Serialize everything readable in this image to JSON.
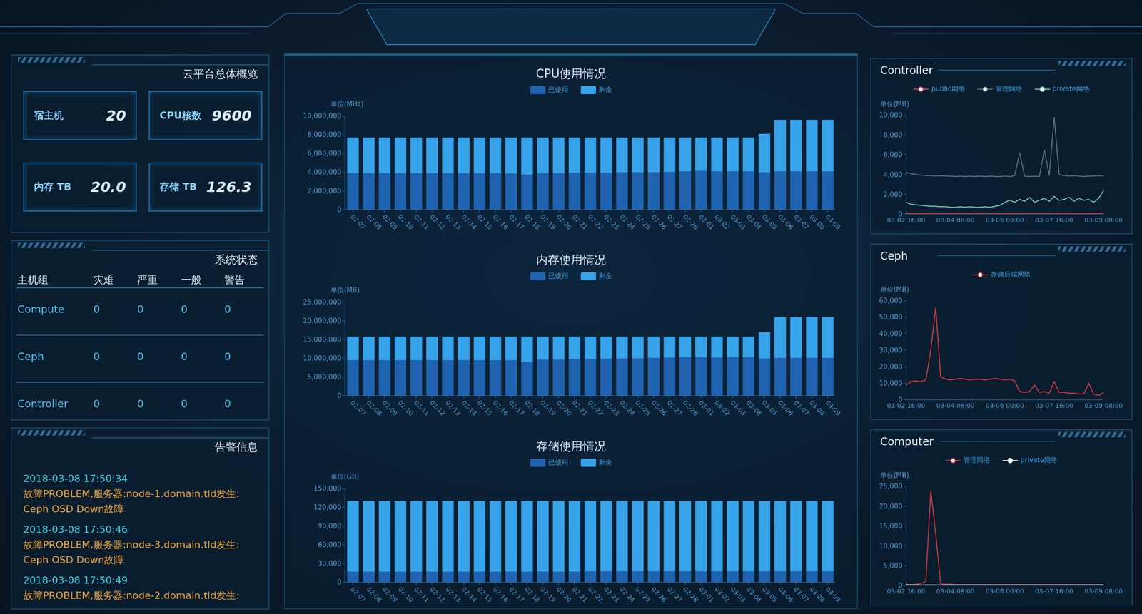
{
  "overview": {
    "title": "云平台总体概览",
    "items": [
      {
        "label": "宿主机",
        "value": "20"
      },
      {
        "label": "CPU核数",
        "value": "9600"
      },
      {
        "label": "内存 TB",
        "value": "20.0"
      },
      {
        "label": "存储 TB",
        "value": "126.3"
      }
    ]
  },
  "system_status": {
    "title": "系统状态",
    "table": {
      "columns": [
        "主机组",
        "灾难",
        "严重",
        "一般",
        "警告"
      ],
      "rows": [
        [
          "Compute",
          "0",
          "0",
          "0",
          "0"
        ],
        [
          "Ceph",
          "0",
          "0",
          "0",
          "0"
        ],
        [
          "Controller",
          "0",
          "0",
          "0",
          "0"
        ]
      ]
    }
  },
  "alerts": {
    "title": "告警信息",
    "items": [
      {
        "time": "2018-03-08 17:50:34",
        "lines": [
          "故障PROBLEM,服务器:node-1.domain.tld发生:",
          "Ceph OSD Down故障"
        ]
      },
      {
        "time": "2018-03-08 17:50:46",
        "lines": [
          "故障PROBLEM,服务器:node-3.domain.tld发生:",
          "Ceph OSD Down故障"
        ]
      },
      {
        "time": "2018-03-08 17:50:49",
        "lines": [
          "故障PROBLEM,服务器:node-2.domain.tld发生:"
        ]
      }
    ]
  },
  "chart_data": [
    {
      "type": "bar",
      "title": "CPU使用情况",
      "y_label": "单位(MHz)",
      "categories": [
        "02-07",
        "02-08",
        "02-09",
        "02-10",
        "02-11",
        "02-12",
        "02-13",
        "02-14",
        "02-15",
        "02-16",
        "02-17",
        "02-18",
        "02-19",
        "02-20",
        "02-21",
        "02-22",
        "02-23",
        "02-24",
        "02-25",
        "02-26",
        "02-27",
        "02-28",
        "03-01",
        "03-02",
        "03-03",
        "03-04",
        "03-05",
        "03-06",
        "03-07",
        "03-08",
        "03-09"
      ],
      "series": [
        {
          "name": "已使用",
          "color": "#1f63b0",
          "values": [
            3900000,
            3900000,
            3900000,
            3900000,
            3900000,
            3900000,
            3900000,
            3900000,
            3900000,
            3900000,
            3850000,
            3750000,
            3900000,
            3900000,
            3950000,
            3950000,
            3950000,
            4000000,
            4000000,
            4000000,
            4050000,
            4100000,
            4150000,
            4100000,
            4100000,
            4100000,
            4000000,
            4100000,
            4100000,
            4100000,
            4100000
          ]
        },
        {
          "name": "剩余",
          "color": "#36a3ea",
          "values": [
            3800000,
            3800000,
            3800000,
            3800000,
            3800000,
            3800000,
            3800000,
            3800000,
            3800000,
            3800000,
            3850000,
            3950000,
            3800000,
            3800000,
            3750000,
            3750000,
            3750000,
            3700000,
            3700000,
            3700000,
            3650000,
            3600000,
            3550000,
            3600000,
            3600000,
            3600000,
            4100000,
            5500000,
            5500000,
            5500000,
            5500000
          ]
        }
      ],
      "stacked": true,
      "ylim": [
        0,
        10000000
      ],
      "yticks": [
        0,
        {
          "value": 2000000,
          "label": "2,000,000"
        },
        {
          "value": 4000000,
          "label": "4,000,000"
        },
        {
          "value": 6000000,
          "label": "6,000,000"
        },
        {
          "value": 8000000,
          "label": "8,000,000"
        },
        {
          "value": 10000000,
          "label": "10,000,000"
        }
      ],
      "grid": false,
      "legend": "top"
    },
    {
      "type": "bar",
      "title": "内存使用情况",
      "y_label": "单位(MB)",
      "categories": [
        "02-07",
        "02-08",
        "02-09",
        "02-10",
        "02-11",
        "02-12",
        "02-13",
        "02-14",
        "02-15",
        "02-16",
        "02-17",
        "02-18",
        "02-19",
        "02-20",
        "02-21",
        "02-22",
        "02-23",
        "02-24",
        "02-25",
        "02-26",
        "02-27",
        "02-28",
        "03-01",
        "03-02",
        "03-03",
        "03-04",
        "03-05",
        "03-06",
        "03-07",
        "03-08",
        "03-09"
      ],
      "series": [
        {
          "name": "已使用",
          "color": "#1f63b0",
          "values": [
            9500000,
            9500000,
            9500000,
            9500000,
            9500000,
            9500000,
            9500000,
            9500000,
            9500000,
            9500000,
            9500000,
            9000000,
            9600000,
            9600000,
            9700000,
            9800000,
            9900000,
            10000000,
            10000000,
            10100000,
            10200000,
            10300000,
            10300000,
            10200000,
            10300000,
            10300000,
            10000000,
            10100000,
            10100000,
            10100000,
            10100000
          ]
        },
        {
          "name": "剩余",
          "color": "#36a3ea",
          "values": [
            6300000,
            6300000,
            6300000,
            6300000,
            6300000,
            6300000,
            6300000,
            6300000,
            6300000,
            6300000,
            6300000,
            6800000,
            6200000,
            6200000,
            6100000,
            6000000,
            5900000,
            5800000,
            5800000,
            5700000,
            5600000,
            5500000,
            5500000,
            5600000,
            5500000,
            5500000,
            7000000,
            10900000,
            10900000,
            10900000,
            10900000
          ]
        }
      ],
      "stacked": true,
      "ylim": [
        0,
        25000000
      ],
      "yticks": [
        0,
        {
          "value": 5000000,
          "label": "5,000,000"
        },
        {
          "value": 10000000,
          "label": "10,000,000"
        },
        {
          "value": 15000000,
          "label": "15,000,000"
        },
        {
          "value": 20000000,
          "label": "20,000,000"
        },
        {
          "value": 25000000,
          "label": "25,000,000"
        }
      ],
      "grid": false,
      "legend": "top"
    },
    {
      "type": "bar",
      "title": "存储使用情况",
      "y_label": "单位(GB)",
      "categories": [
        "02-07",
        "02-08",
        "02-09",
        "02-10",
        "02-11",
        "02-12",
        "02-13",
        "02-14",
        "02-15",
        "02-16",
        "02-17",
        "02-18",
        "02-19",
        "02-20",
        "02-21",
        "02-22",
        "02-23",
        "02-24",
        "02-25",
        "02-26",
        "02-27",
        "02-28",
        "03-01",
        "03-02",
        "03-03",
        "03-04",
        "03-05",
        "03-06",
        "03-07",
        "03-08",
        "03-09"
      ],
      "series": [
        {
          "name": "已使用",
          "color": "#1f63b0",
          "values": [
            17000,
            17000,
            17000,
            17000,
            17000,
            17000,
            17000,
            17000,
            17000,
            17000,
            17000,
            17000,
            17000,
            17000,
            17000,
            17500,
            17500,
            17500,
            17500,
            17500,
            17500,
            17500,
            17500,
            17500,
            17500,
            17500,
            17500,
            17500,
            17500,
            17500,
            17500
          ]
        },
        {
          "name": "剩余",
          "color": "#36a3ea",
          "values": [
            113000,
            113000,
            113000,
            113000,
            113000,
            113000,
            113000,
            113000,
            113000,
            113000,
            113000,
            113000,
            113000,
            113000,
            113000,
            112500,
            112500,
            112500,
            112500,
            112500,
            112500,
            112500,
            112500,
            112500,
            112500,
            112500,
            112500,
            112500,
            112500,
            112500,
            112500
          ]
        }
      ],
      "stacked": true,
      "ylim": [
        0,
        150000
      ],
      "yticks": [
        0,
        {
          "value": 30000,
          "label": "30,000"
        },
        {
          "value": 60000,
          "label": "60,000"
        },
        {
          "value": 90000,
          "label": "90,000"
        },
        {
          "value": 120000,
          "label": "120,000"
        },
        {
          "value": 150000,
          "label": "150,000"
        }
      ],
      "grid": false,
      "legend": "top"
    },
    {
      "type": "line",
      "title": "Controller",
      "y_label": "单位(MB)",
      "categories": [
        "03-02 16:00",
        null,
        null,
        null,
        null,
        null,
        null,
        null,
        null,
        null,
        "03-04 08:00",
        null,
        null,
        null,
        null,
        null,
        null,
        null,
        null,
        null,
        "03-06 00:00",
        null,
        null,
        null,
        null,
        null,
        null,
        null,
        null,
        null,
        "03-07 16:00",
        null,
        null,
        null,
        null,
        null,
        null,
        null,
        null,
        null,
        "03-09 08:00"
      ],
      "series": [
        {
          "name": "public网络",
          "color": "#e0434b",
          "values": [
            100,
            100,
            100,
            100,
            100,
            100,
            100,
            100,
            100,
            100,
            100,
            100,
            100,
            100,
            100,
            100,
            100,
            100,
            100,
            100,
            100,
            100,
            100,
            100,
            100,
            100,
            100,
            100,
            100,
            100,
            100,
            100,
            100,
            100,
            100,
            100,
            100,
            100,
            100,
            100,
            100
          ]
        },
        {
          "name": "管理网络",
          "color": "#5f747e",
          "values": [
            4200,
            4100,
            4000,
            3950,
            3900,
            3900,
            3850,
            3900,
            3850,
            3850,
            3800,
            3850,
            3800,
            3850,
            3800,
            3850,
            3800,
            3850,
            3800,
            3800,
            3850,
            3800,
            3900,
            6200,
            3850,
            3800,
            3850,
            3800,
            6500,
            3900,
            9800,
            4000,
            3900,
            3850,
            3900,
            3850,
            3800,
            3850,
            3850,
            3900,
            3850
          ]
        },
        {
          "name": "private网络",
          "color": "#7fc8c0",
          "values": [
            1200,
            1000,
            950,
            900,
            850,
            800,
            800,
            750,
            750,
            700,
            700,
            750,
            700,
            750,
            700,
            700,
            750,
            700,
            800,
            900,
            1200,
            1400,
            1200,
            1500,
            1300,
            1700,
            1200,
            1400,
            1600,
            1300,
            1800,
            1400,
            1500,
            1700,
            1300,
            1600,
            1400,
            1500,
            1200,
            1600,
            2400
          ]
        }
      ],
      "ylim": [
        0,
        10000
      ],
      "yticks": [
        0,
        {
          "value": 2000,
          "label": "2,000"
        },
        {
          "value": 4000,
          "label": "4,000"
        },
        {
          "value": 6000,
          "label": "6,000"
        },
        {
          "value": 8000,
          "label": "8,000"
        },
        {
          "value": 10000,
          "label": "10,000"
        }
      ],
      "grid": false,
      "legend": "top"
    },
    {
      "type": "line",
      "title": "Ceph",
      "y_label": "单位(MB)",
      "categories": [
        "03-02 16:00",
        null,
        null,
        null,
        null,
        null,
        null,
        null,
        null,
        null,
        "03-04 08:00",
        null,
        null,
        null,
        null,
        null,
        null,
        null,
        null,
        null,
        "03-06 00:00",
        null,
        null,
        null,
        null,
        null,
        null,
        null,
        null,
        null,
        "03-07 16:00",
        null,
        null,
        null,
        null,
        null,
        null,
        null,
        null,
        null,
        "03-09 08:00"
      ],
      "series": [
        {
          "name": "存储后端网络",
          "color": "#d8393f",
          "values": [
            9000,
            11000,
            11500,
            11000,
            12000,
            30000,
            56000,
            14000,
            12500,
            12000,
            12500,
            13000,
            12500,
            12000,
            12500,
            12500,
            12000,
            12500,
            13000,
            12500,
            12000,
            12500,
            11500,
            5000,
            4500,
            5000,
            9000,
            4500,
            5000,
            4000,
            11000,
            4500,
            4500,
            4000,
            4000,
            3500,
            3500,
            10000,
            3500,
            2500,
            4500
          ]
        }
      ],
      "ylim": [
        0,
        60000
      ],
      "yticks": [
        0,
        {
          "value": 10000,
          "label": "10,000"
        },
        {
          "value": 20000,
          "label": "20,000"
        },
        {
          "value": 30000,
          "label": "30,000"
        },
        {
          "value": 40000,
          "label": "40,000"
        },
        {
          "value": 50000,
          "label": "50,000"
        },
        {
          "value": 60000,
          "label": "60,000"
        }
      ],
      "grid": false,
      "legend": "top"
    },
    {
      "type": "line",
      "title": "Computer",
      "y_label": "单位(MB)",
      "categories": [
        "03-02 16:00",
        null,
        null,
        null,
        null,
        null,
        null,
        null,
        null,
        null,
        "03-04 08:00",
        null,
        null,
        null,
        null,
        null,
        null,
        null,
        null,
        null,
        "03-06 00:00",
        null,
        null,
        null,
        null,
        null,
        null,
        null,
        null,
        null,
        "03-07 16:00",
        null,
        null,
        null,
        null,
        null,
        null,
        null,
        null,
        null,
        "03-09 08:00"
      ],
      "series": [
        {
          "name": "管理网络",
          "color": "#d8393f",
          "values": [
            300,
            200,
            300,
            500,
            1000,
            24000,
            13000,
            500,
            300,
            300,
            200,
            200,
            200,
            200,
            200,
            200,
            200,
            200,
            200,
            200,
            200,
            200,
            200,
            200,
            200,
            200,
            200,
            200,
            200,
            200,
            200,
            200,
            200,
            200,
            200,
            200,
            200,
            200,
            200,
            200,
            200
          ]
        },
        {
          "name": "private网络",
          "color": "#e6eef2",
          "values": [
            100,
            100,
            100,
            100,
            100,
            100,
            100,
            100,
            100,
            100,
            100,
            100,
            100,
            100,
            100,
            100,
            100,
            100,
            100,
            100,
            100,
            100,
            100,
            100,
            100,
            100,
            100,
            100,
            100,
            100,
            100,
            100,
            100,
            100,
            100,
            100,
            100,
            100,
            100,
            100,
            100
          ]
        }
      ],
      "ylim": [
        0,
        25000
      ],
      "yticks": [
        0,
        {
          "value": 5000,
          "label": "5,000"
        },
        {
          "value": 10000,
          "label": "10,000"
        },
        {
          "value": 15000,
          "label": "15,000"
        },
        {
          "value": 20000,
          "label": "20,000"
        },
        {
          "value": 25000,
          "label": "25,000"
        }
      ],
      "grid": false,
      "legend": "top"
    }
  ]
}
